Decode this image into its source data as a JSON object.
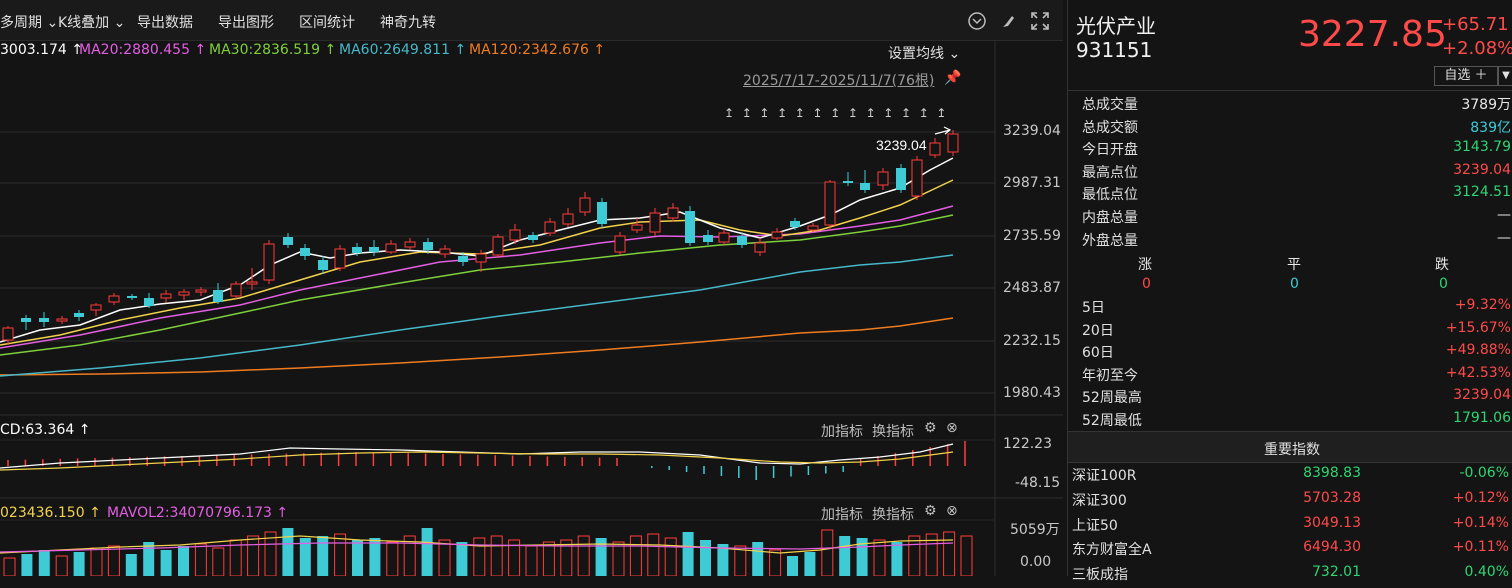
{
  "toolbar": {
    "items": [
      "多周期 ⌄",
      "K线叠加 ⌄",
      "导出数据",
      "导出图形",
      "区间统计",
      "神奇九转"
    ]
  },
  "ma_line": {
    "ma5": "3003.174 ↑",
    "ma20": "MA20:2880.455 ↑",
    "ma30": "MA30:2836.519 ↑",
    "ma60": "MA60:2649.811 ↑",
    "ma120": "MA120:2342.676 ↑",
    "setting": "设置均线 ⌄"
  },
  "range_label": "2025/7/17-2025/11/7(76根)",
  "high_label": "3239.04",
  "price_axis": [
    "3239.04",
    "2987.31",
    "2735.59",
    "2483.87",
    "2232.15",
    "1980.43"
  ],
  "macd": {
    "label": "CD:63.364 ↑",
    "add": "加指标",
    "change": "换指标",
    "axis": [
      "122.23",
      "-48.15"
    ]
  },
  "vol": {
    "label1": "023436.150 ↑",
    "label2": "MAVOL2:34070796.173 ↑",
    "add": "加指标",
    "change": "换指标",
    "axis": [
      "5059万",
      "0.00"
    ]
  },
  "colors": {
    "up": "#ff3c3c",
    "down": "#3ecbd6",
    "ma5": "#ffffff",
    "ma20": "#f2d24b",
    "ma30": "#e45ee4",
    "ma60": "#7fcf3c",
    "ma120": "#46b8c9",
    "ma250": "#f07c20"
  },
  "stock": {
    "name": "光伏产业",
    "code": "931151",
    "price": "3227.85",
    "change": "+65.71",
    "pct": "+2.08%",
    "watch": "自选 ＋"
  },
  "stats": [
    {
      "k": "总成交量",
      "v": "3789万",
      "c": "white"
    },
    {
      "k": "总成交额",
      "v": "839亿",
      "c": "cyan"
    },
    {
      "k": "今日开盘",
      "v": "3143.79",
      "c": "green"
    },
    {
      "k": "最高点位",
      "v": "3239.04",
      "c": "red"
    },
    {
      "k": "最低点位",
      "v": "3124.51",
      "c": "green"
    },
    {
      "k": "内盘总量",
      "v": "—",
      "c": "white"
    },
    {
      "k": "外盘总量",
      "v": "—",
      "c": "white"
    }
  ],
  "breadth": {
    "labels": [
      "涨",
      "平",
      "跌"
    ],
    "values": [
      "0",
      "0",
      "0"
    ]
  },
  "perf": [
    {
      "k": "5日",
      "v": "+9.32%"
    },
    {
      "k": "20日",
      "v": "+15.67%"
    },
    {
      "k": "60日",
      "v": "+49.88%"
    },
    {
      "k": "年初至今",
      "v": "+42.53%"
    },
    {
      "k": "52周最高",
      "v": "3239.04",
      "c": "red"
    },
    {
      "k": "52周最低",
      "v": "1791.06",
      "c": "green"
    }
  ],
  "indices_title": "重要指数",
  "indices": [
    {
      "n": "深证100R",
      "p": "8398.83",
      "c": "-0.06%",
      "pc": "green",
      "cc": "green"
    },
    {
      "n": "深证300",
      "p": "5703.28",
      "c": "+0.12%",
      "pc": "red",
      "cc": "red"
    },
    {
      "n": "上证50",
      "p": "3049.13",
      "c": "+0.14%",
      "pc": "red",
      "cc": "red"
    },
    {
      "n": "东方财富全A",
      "p": "6494.30",
      "c": "+0.11%",
      "pc": "red",
      "cc": "red"
    },
    {
      "n": "三板成指",
      "p": "732.01",
      "c": "0.40%",
      "pc": "green",
      "cc": "green"
    }
  ]
}
